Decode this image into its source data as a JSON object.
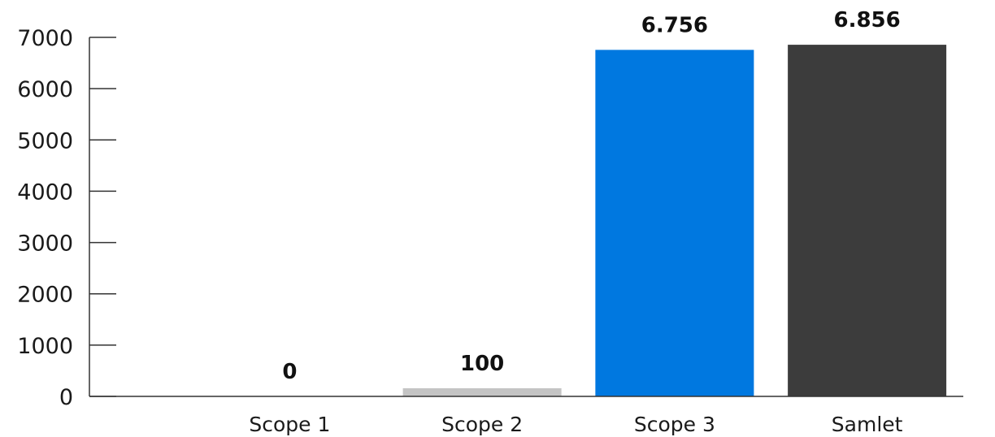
{
  "chart_data": {
    "type": "bar",
    "categories": [
      "Scope 1",
      "Scope 2",
      "Scope 3",
      "Samlet"
    ],
    "values": [
      0,
      100,
      6756,
      6856
    ],
    "data_labels": [
      "0",
      "100",
      "6.756",
      "6.856"
    ],
    "bar_colors": [
      "#c4c4c4",
      "#c4c4c4",
      "#0078e0",
      "#3c3c3c"
    ],
    "yticks": [
      "0",
      "1000",
      "2000",
      "3000",
      "4000",
      "5000",
      "6000",
      "7000"
    ],
    "ylim": [
      0,
      7000
    ],
    "grid": false,
    "legend": "none"
  }
}
